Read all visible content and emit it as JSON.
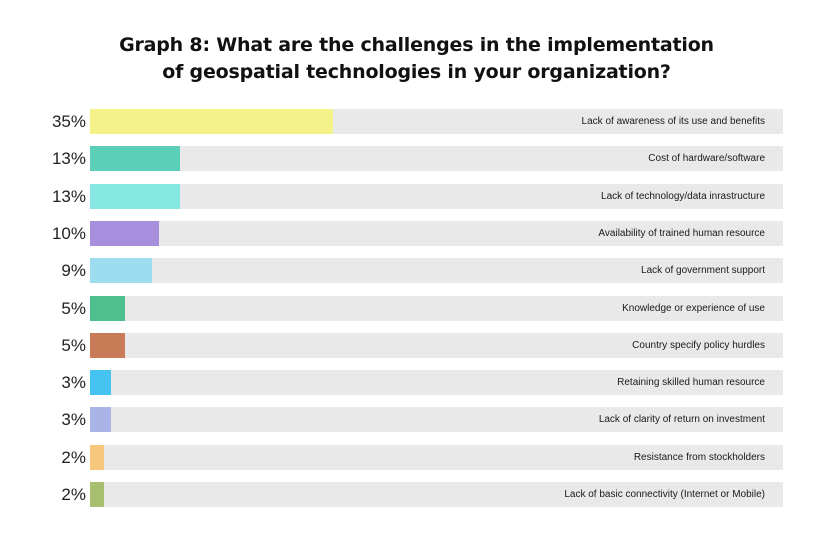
{
  "chart_data": {
    "type": "bar",
    "orientation": "horizontal",
    "title": "Graph 8: What are the challenges in the implementation of geospatial technologies in your organization?",
    "title_lines": [
      "Graph 8: What are the challenges in the implementation",
      "of geospatial technologies in your organization?"
    ],
    "xlim": [
      0,
      100
    ],
    "categories": [
      "Lack of awareness of its use and benefits",
      "Cost of hardware/software",
      "Lack of technology/data inrastructure",
      "Availability of trained human resource",
      "Lack of government support",
      "Knowledge or experience of use",
      "Country specify policy hurdles",
      "Retaining skilled human resource",
      "Lack of clarity of return on investment",
      "Resistance from stockholders",
      "Lack of basic connectivity (Internet or Mobile)"
    ],
    "values": [
      35,
      13,
      13,
      10,
      9,
      5,
      5,
      3,
      3,
      2,
      2
    ],
    "value_labels": [
      "35%",
      "13%",
      "13%",
      "10%",
      "9%",
      "5%",
      "5%",
      "3%",
      "3%",
      "2%",
      "2%"
    ],
    "colors": [
      "#f3f38a",
      "#5ccfb8",
      "#86e6e2",
      "#a78fde",
      "#9edcf0",
      "#4dc08d",
      "#c97a56",
      "#45c3f1",
      "#aab4e6",
      "#f6c77d",
      "#a9bf70"
    ],
    "track_color": "#e9e9e9"
  }
}
